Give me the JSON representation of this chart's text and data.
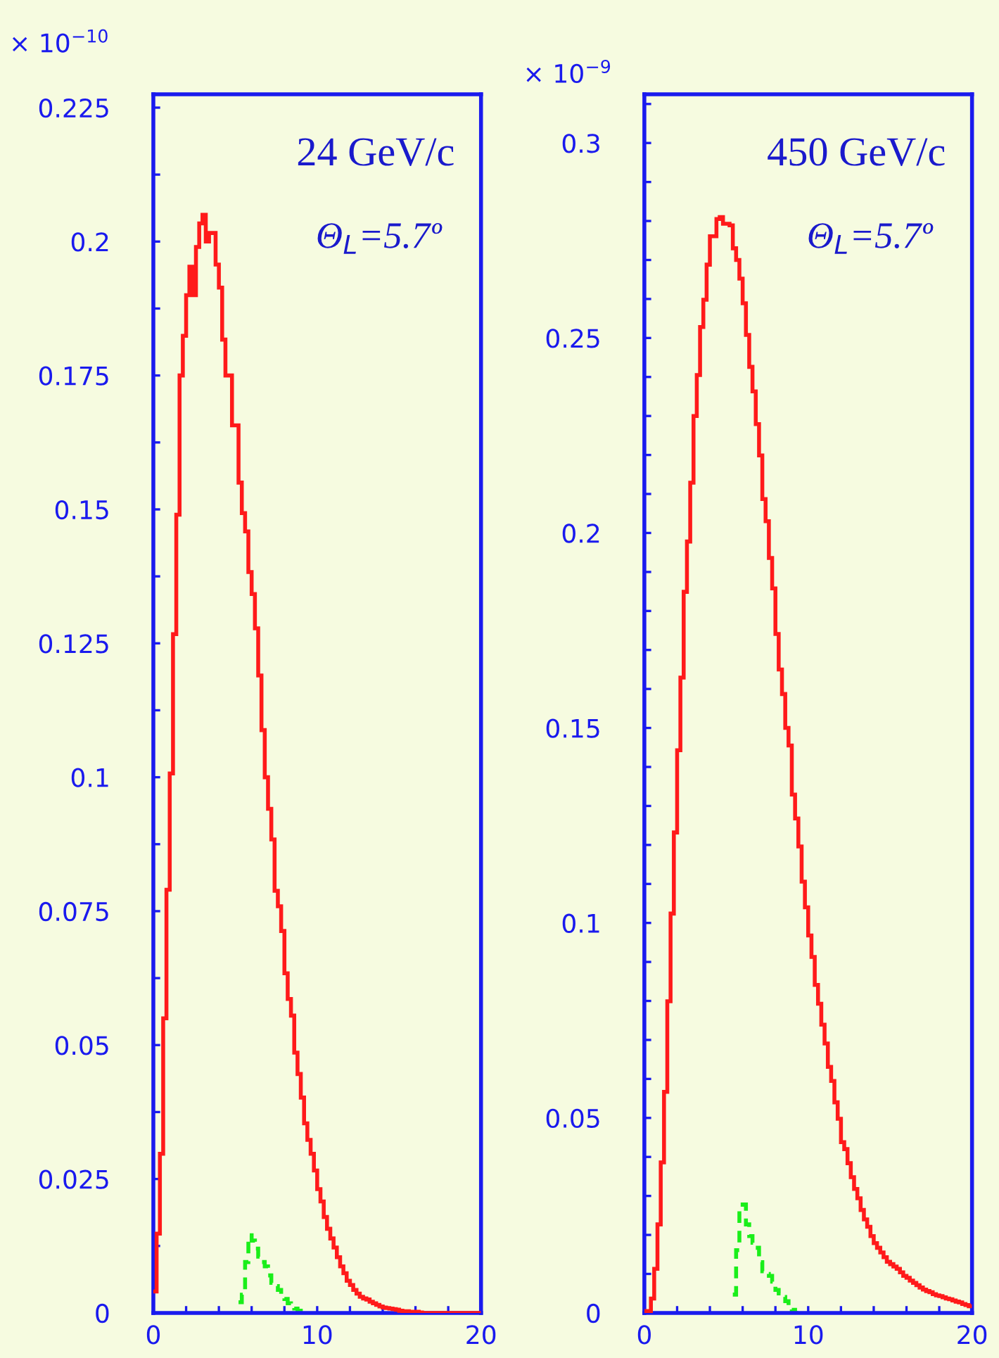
{
  "chart_data": [
    {
      "type": "histogram",
      "title": "24 GeV/c",
      "subtitle": "Θ$_{L}$=5.7º",
      "annotations": [
        "× 10$^{−10}$"
      ],
      "bins": [
        0,
        0.2,
        0.4,
        0.6,
        0.8,
        1,
        1.2,
        1.4,
        1.6,
        1.8,
        2,
        2.2,
        2.4,
        2.6,
        2.8,
        3,
        3.2,
        3.4,
        3.6,
        3.8,
        4,
        4.2,
        4.4,
        4.6,
        4.8,
        5,
        5.2,
        5.4,
        5.6,
        5.8,
        6,
        6.2,
        6.4,
        6.6,
        6.8,
        7,
        7.2,
        7.4,
        7.6,
        7.8,
        8,
        8.2,
        8.4,
        8.6,
        8.8,
        9,
        9.2,
        9.4,
        9.6,
        9.8,
        10,
        10.2,
        10.4,
        10.6,
        10.8,
        11,
        11.2,
        11.4,
        11.6,
        11.8,
        12,
        12.2,
        12.4,
        12.6,
        12.8,
        13,
        13.2,
        13.4,
        13.6,
        13.8,
        14,
        14.2,
        14.4,
        14.6,
        14.8,
        15,
        15.2,
        15.4,
        15.6,
        15.8,
        16,
        16.2,
        16.4,
        16.6,
        16.8,
        17,
        17.2,
        17.4,
        17.6,
        17.8,
        18,
        18.2,
        18.4,
        18.6,
        18.8,
        19,
        19.2,
        19.4,
        19.6,
        19.8,
        20
      ],
      "series": [
        {
          "color": "#ff1a1a",
          "line_style": "solid",
          "values": [
            0.004,
            0.0148,
            0.0297,
            0.055,
            0.079,
            0.1007,
            0.1267,
            0.149,
            0.175,
            0.1824,
            0.19,
            0.1953,
            0.19,
            0.199,
            0.2034,
            0.205,
            0.2,
            0.2016,
            0.2016,
            0.1957,
            0.1914,
            0.1817,
            0.175,
            0.175,
            0.1657,
            0.1657,
            0.155,
            0.1493,
            0.1459,
            0.1383,
            0.1342,
            0.1278,
            0.119,
            0.1088,
            0.1,
            0.0941,
            0.0884,
            0.0788,
            0.0759,
            0.0713,
            0.0634,
            0.0586,
            0.0555,
            0.0486,
            0.0446,
            0.0402,
            0.0354,
            0.0323,
            0.0297,
            0.0266,
            0.0231,
            0.0208,
            0.0179,
            0.0157,
            0.0139,
            0.0122,
            0.0104,
            0.0087,
            0.0074,
            0.006,
            0.0052,
            0.0043,
            0.0036,
            0.003,
            0.0027,
            0.0025,
            0.0021,
            0.0018,
            0.0015,
            0.0012,
            0.001,
            0.0009,
            0.0008,
            0.0007,
            0.0006,
            0.0004,
            0.0003,
            0.0003,
            0.0002,
            0.0002,
            0.0002,
            0.0001,
            0,
            0,
            0,
            0,
            0,
            0,
            0,
            0,
            0,
            0,
            0,
            0,
            0,
            0,
            0,
            0,
            0,
            0
          ]
        },
        {
          "color": "#1aee1a",
          "line_style": "dashed",
          "bins": [
            5.2,
            5.4,
            5.6,
            5.8,
            6,
            6.2,
            6.4,
            6.6,
            6.8,
            7,
            7.2,
            7.4,
            7.6,
            7.8,
            8,
            8.2,
            8.4,
            8.6,
            8.8,
            9,
            9.2,
            9.4
          ],
          "values": [
            0.002,
            0.0034,
            0.0095,
            0.0145,
            0.0135,
            0.012,
            0.0105,
            0.0095,
            0.0087,
            0.007,
            0.0056,
            0.005,
            0.0043,
            0.0035,
            0.0026,
            0.0018,
            0.0012,
            0.0008,
            0.0004,
            0.0002,
            0
          ]
        }
      ],
      "xlim": [
        0,
        20
      ],
      "xticks": [
        0,
        {
          "value": 2,
          "label": null
        },
        {
          "value": 4,
          "label": null
        },
        {
          "value": 6,
          "label": null
        },
        {
          "value": 8,
          "label": null
        },
        10,
        {
          "value": 12,
          "label": null
        },
        {
          "value": 14,
          "label": null
        },
        {
          "value": 16,
          "label": null
        },
        {
          "value": 18,
          "label": null
        },
        20
      ],
      "ylim": [
        0,
        0.2275
      ],
      "yticks": [
        0,
        {
          "value": 0.0125,
          "label": null
        },
        0.025,
        {
          "value": 0.0375,
          "label": null
        },
        0.05,
        {
          "value": 0.0625,
          "label": null
        },
        0.075,
        {
          "value": 0.0875,
          "label": null
        },
        0.1,
        {
          "value": 0.1125,
          "label": null
        },
        0.125,
        {
          "value": 0.1375,
          "label": null
        },
        0.15,
        {
          "value": 0.1625,
          "label": null
        },
        0.175,
        {
          "value": 0.1875,
          "label": null
        },
        0.2,
        {
          "value": 0.2125,
          "label": null
        },
        0.225
      ],
      "grid": false
    },
    {
      "type": "histogram",
      "title": "450 GeV/c",
      "subtitle": "Θ$_{L}$=5.7º",
      "annotations": [
        "× 10$^{−9}$"
      ],
      "bins": [
        0,
        0.2,
        0.4,
        0.6,
        0.8,
        1,
        1.2,
        1.4,
        1.6,
        1.8,
        2,
        2.2,
        2.4,
        2.6,
        2.8,
        3,
        3.2,
        3.4,
        3.6,
        3.8,
        4,
        4.2,
        4.4,
        4.6,
        4.8,
        5,
        5.2,
        5.4,
        5.6,
        5.8,
        6,
        6.2,
        6.4,
        6.6,
        6.8,
        7,
        7.2,
        7.4,
        7.6,
        7.8,
        8,
        8.2,
        8.4,
        8.6,
        8.8,
        9,
        9.2,
        9.4,
        9.6,
        9.8,
        10,
        10.2,
        10.4,
        10.6,
        10.8,
        11,
        11.2,
        11.4,
        11.6,
        11.8,
        12,
        12.2,
        12.4,
        12.6,
        12.8,
        13,
        13.2,
        13.4,
        13.6,
        13.8,
        14,
        14.2,
        14.4,
        14.6,
        14.8,
        15,
        15.2,
        15.4,
        15.6,
        15.8,
        16,
        16.2,
        16.4,
        16.6,
        16.8,
        17,
        17.2,
        17.4,
        17.6,
        17.8,
        18,
        18.2,
        18.4,
        18.6,
        18.8,
        19,
        19.2,
        19.4,
        19.6,
        19.8,
        20
      ],
      "series": [
        {
          "color": "#ff1a1a",
          "line_style": "solid",
          "values": [
            0.0005,
            0.0005,
            0.0037,
            0.0113,
            0.0227,
            0.0386,
            0.0567,
            0.0799,
            0.1024,
            0.1232,
            0.1443,
            0.1629,
            0.1849,
            0.1978,
            0.2129,
            0.23,
            0.2405,
            0.2528,
            0.2598,
            0.2688,
            0.2761,
            0.2761,
            0.2805,
            0.281,
            0.2793,
            0.2793,
            0.2789,
            0.273,
            0.27,
            0.2652,
            0.2589,
            0.2508,
            0.2426,
            0.2363,
            0.2279,
            0.2199,
            0.2087,
            0.203,
            0.1936,
            0.1858,
            0.1741,
            0.165,
            0.1587,
            0.15,
            0.1455,
            0.1329,
            0.1268,
            0.1196,
            0.1106,
            0.104,
            0.0968,
            0.0913,
            0.0841,
            0.0793,
            0.0739,
            0.0691,
            0.0631,
            0.0595,
            0.054,
            0.0498,
            0.0438,
            0.042,
            0.0384,
            0.0348,
            0.0318,
            0.0294,
            0.0264,
            0.024,
            0.0221,
            0.0197,
            0.0179,
            0.0167,
            0.0155,
            0.0143,
            0.0131,
            0.0125,
            0.0119,
            0.0113,
            0.0104,
            0.0095,
            0.009,
            0.0083,
            0.0077,
            0.0071,
            0.0065,
            0.006,
            0.0056,
            0.0053,
            0.0048,
            0.0045,
            0.0043,
            0.004,
            0.0037,
            0.0035,
            0.0032,
            0.0029,
            0.0027,
            0.0023,
            0.002,
            0.0017
          ]
        },
        {
          "color": "#1aee1a",
          "line_style": "dashed",
          "bins": [
            5.4,
            5.6,
            5.8,
            6,
            6.2,
            6.4,
            6.6,
            6.8,
            7,
            7.2,
            7.4,
            7.6,
            7.8,
            8,
            8.2,
            8.4,
            8.6,
            8.8,
            9,
            9.2,
            9.4
          ],
          "values": [
            0.0047,
            0.0161,
            0.027,
            0.0278,
            0.0227,
            0.0197,
            0.018,
            0.0167,
            0.013,
            0.0107,
            0.01,
            0.0095,
            0.008,
            0.0059,
            0.005,
            0.0041,
            0.003,
            0.0012,
            0.0008,
            0
          ]
        }
      ],
      "xlim": [
        0,
        20
      ],
      "xticks": [
        0,
        {
          "value": 2,
          "label": null
        },
        {
          "value": 4,
          "label": null
        },
        {
          "value": 6,
          "label": null
        },
        {
          "value": 8,
          "label": null
        },
        10,
        {
          "value": 12,
          "label": null
        },
        {
          "value": 14,
          "label": null
        },
        {
          "value": 16,
          "label": null
        },
        {
          "value": 18,
          "label": null
        },
        20
      ],
      "ylim": [
        0,
        0.3125
      ],
      "yticks": [
        0,
        {
          "value": 0.01,
          "label": null
        },
        {
          "value": 0.02,
          "label": null
        },
        {
          "value": 0.03,
          "label": null
        },
        {
          "value": 0.04,
          "label": null
        },
        0.05,
        {
          "value": 0.06,
          "label": null
        },
        {
          "value": 0.07,
          "label": null
        },
        {
          "value": 0.08,
          "label": null
        },
        {
          "value": 0.09,
          "label": null
        },
        0.1,
        {
          "value": 0.11,
          "label": null
        },
        {
          "value": 0.12,
          "label": null
        },
        {
          "value": 0.13,
          "label": null
        },
        {
          "value": 0.14,
          "label": null
        },
        0.15,
        {
          "value": 0.16,
          "label": null
        },
        {
          "value": 0.17,
          "label": null
        },
        {
          "value": 0.18,
          "label": null
        },
        {
          "value": 0.19,
          "label": null
        },
        0.2,
        {
          "value": 0.21,
          "label": null
        },
        {
          "value": 0.22,
          "label": null
        },
        {
          "value": 0.23,
          "label": null
        },
        {
          "value": 0.24,
          "label": null
        },
        0.25,
        {
          "value": 0.26,
          "label": null
        },
        {
          "value": 0.27,
          "label": null
        },
        {
          "value": 0.28,
          "label": null
        },
        {
          "value": 0.29,
          "label": null
        },
        0.3,
        {
          "value": 0.31,
          "label": null
        }
      ],
      "grid": false
    }
  ]
}
